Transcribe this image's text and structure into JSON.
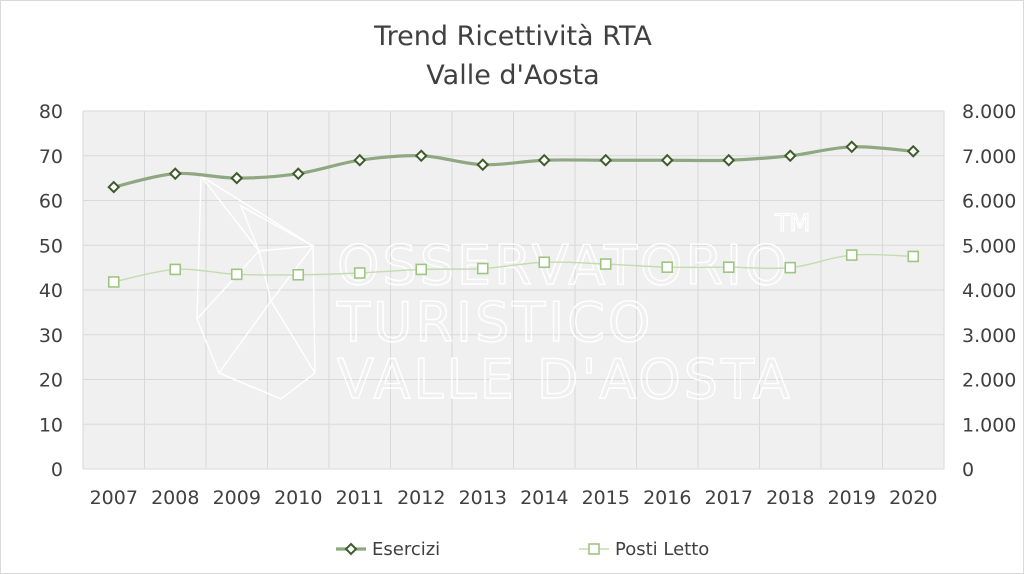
{
  "chart_data": {
    "type": "line",
    "title": [
      "Trend Ricettività RTA",
      "Valle d'Aosta"
    ],
    "categories": [
      "2007",
      "2008",
      "2009",
      "2010",
      "2011",
      "2012",
      "2013",
      "2014",
      "2015",
      "2016",
      "2017",
      "2018",
      "2019",
      "2020"
    ],
    "y_left": {
      "ylim": [
        0,
        80
      ],
      "ticks": [
        "0",
        "10",
        "20",
        "30",
        "40",
        "50",
        "60",
        "70",
        "80"
      ]
    },
    "y_right": {
      "ylim": [
        0,
        8000
      ],
      "ticks": [
        "0",
        "1.000",
        "2.000",
        "3.000",
        "4.000",
        "5.000",
        "6.000",
        "7.000",
        "8.000"
      ]
    },
    "grid": true,
    "legend_position": "bottom",
    "series": [
      {
        "name": "Esercizi",
        "axis": "left",
        "marker": "diamond",
        "color": "#8fa882",
        "marker_color": "#3e5c2a",
        "values": [
          63,
          66,
          65,
          66,
          69,
          70,
          68,
          69,
          69,
          69,
          69,
          70,
          72,
          71
        ]
      },
      {
        "name": "Posti Letto",
        "axis": "right",
        "marker": "square",
        "color": "#c5dbb0",
        "marker_color": "#9fc582",
        "values": [
          4180,
          4460,
          4350,
          4340,
          4380,
          4460,
          4480,
          4620,
          4580,
          4510,
          4510,
          4500,
          4780,
          4750
        ]
      }
    ]
  },
  "watermark": {
    "lines": [
      "OSSERVATORIO",
      "TURISTICO",
      "VALLE D'AOSTA"
    ],
    "mark": "TM"
  }
}
